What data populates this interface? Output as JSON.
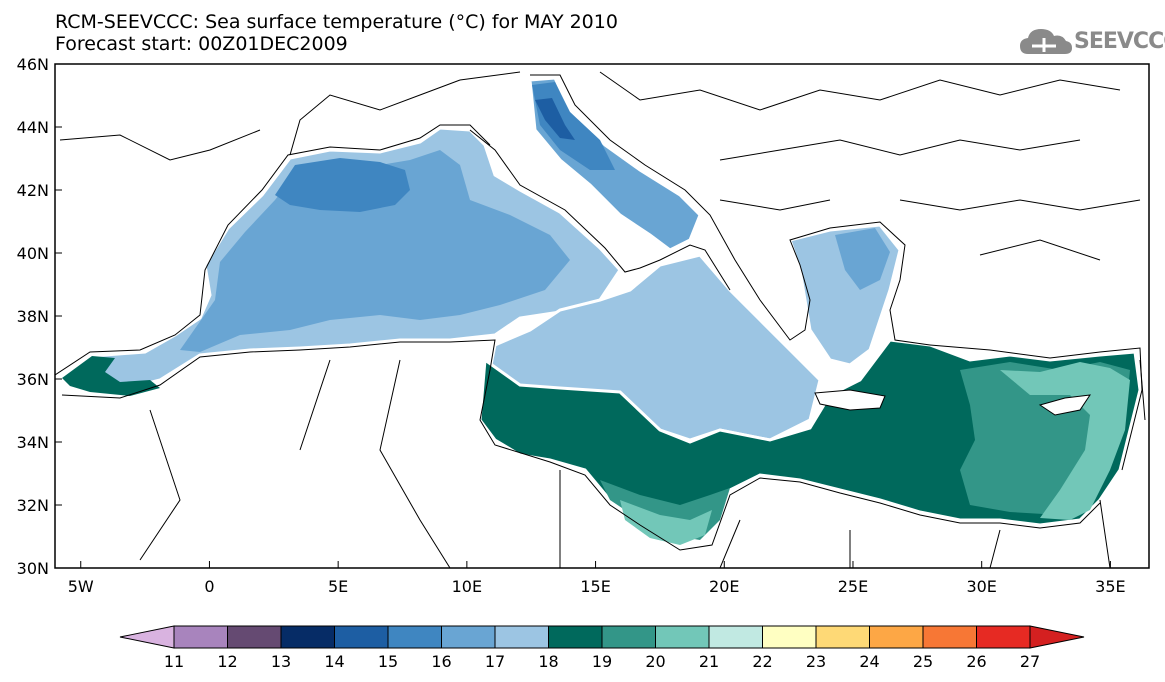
{
  "title": {
    "line1": "RCM-SEEVCCC: Sea surface temperature (°C) for MAY 2010",
    "line2": "Forecast start: 00Z01DEC2009"
  },
  "logo": {
    "text": "SEEVCCC",
    "icon": "cloud-icon"
  },
  "map": {
    "y_labels": [
      "46N",
      "44N",
      "42N",
      "40N",
      "38N",
      "36N",
      "34N",
      "32N",
      "30N"
    ],
    "x_labels": [
      "5W",
      "0",
      "5E",
      "10E",
      "15E",
      "20E",
      "25E",
      "30E",
      "35E"
    ],
    "lat_range": [
      30,
      46
    ],
    "lon_range": [
      -6,
      36.5
    ]
  },
  "colorbar": {
    "ticks": [
      "11",
      "12",
      "13",
      "14",
      "15",
      "16",
      "17",
      "18",
      "19",
      "20",
      "21",
      "22",
      "23",
      "24",
      "25",
      "26",
      "27"
    ],
    "colors": [
      "#d9b3e0",
      "#a884bd",
      "#654a72",
      "#062c66",
      "#1d5ea3",
      "#3f86c1",
      "#69a5d3",
      "#9cc5e3",
      "#00695c",
      "#339688",
      "#72c7b8",
      "#c1e9e2",
      "#ffffc2",
      "#fed976",
      "#fda745",
      "#f77735",
      "#e62a23",
      "#d42020"
    ]
  },
  "colors": {
    "sst_15": "#3f86c1",
    "sst_16": "#69a5d3",
    "sst_17": "#9cc5e3",
    "sst_18": "#00695c",
    "sst_19": "#339688",
    "sst_20": "#72c7b8",
    "coast": "#000000"
  }
}
